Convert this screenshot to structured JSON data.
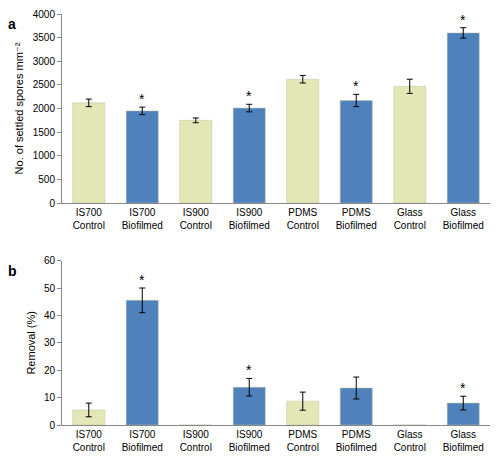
{
  "chart_data": [
    {
      "type": "bar",
      "title": "a",
      "y_label": "No. of settled spores mm⁻²",
      "categories": [
        "IS700 Control",
        "IS700 Biofilmed",
        "IS900 Control",
        "IS900 Biofilmed",
        "PDMS Control",
        "PDMS Biofilmed",
        "Glass Control",
        "Glass Biofilmed"
      ],
      "values": [
        2120,
        1950,
        1750,
        2010,
        2620,
        2170,
        2470,
        3600
      ],
      "errors": [
        80,
        80,
        50,
        80,
        80,
        130,
        150,
        110
      ],
      "colors": [
        "#e3e6b5",
        "#4f81bd",
        "#e3e6b5",
        "#4f81bd",
        "#e3e6b5",
        "#4f81bd",
        "#e3e6b5",
        "#4f81bd"
      ],
      "ylim": [
        0,
        4000
      ],
      "yticks": [
        0,
        500,
        1000,
        1500,
        2000,
        2500,
        3000,
        3500,
        4000
      ],
      "grid": false,
      "annotations": [
        {
          "category": "IS700 Biofilmed",
          "text": "*"
        },
        {
          "category": "IS900 Biofilmed",
          "text": "*"
        },
        {
          "category": "PDMS Biofilmed",
          "text": "*"
        },
        {
          "category": "Glass Biofilmed",
          "text": "*"
        }
      ]
    },
    {
      "type": "bar",
      "title": "b",
      "y_label": "Removal (%)",
      "categories": [
        "IS700 Control",
        "IS700 Biofilmed",
        "IS900 Control",
        "IS900 Biofilmed",
        "PDMS Control",
        "PDMS Biofilmed",
        "Glass Control",
        "Glass Biofilmed"
      ],
      "values": [
        5.5,
        45.5,
        0,
        13.8,
        8.7,
        13.5,
        0,
        8
      ],
      "errors": [
        2.5,
        4.5,
        null,
        3.2,
        3.3,
        4,
        null,
        2.5
      ],
      "colors": [
        "#e3e6b5",
        "#4f81bd",
        "#e3e6b5",
        "#4f81bd",
        "#e3e6b5",
        "#4f81bd",
        "#e3e6b5",
        "#4f81bd"
      ],
      "ylim": [
        0,
        60
      ],
      "yticks": [
        0,
        10,
        20,
        30,
        40,
        50,
        60
      ],
      "grid": false,
      "annotations": [
        {
          "category": "IS700 Biofilmed",
          "text": "*"
        },
        {
          "category": "IS900 Biofilmed",
          "text": "*"
        },
        {
          "category": "Glass Biofilmed",
          "text": "*"
        }
      ]
    }
  ]
}
